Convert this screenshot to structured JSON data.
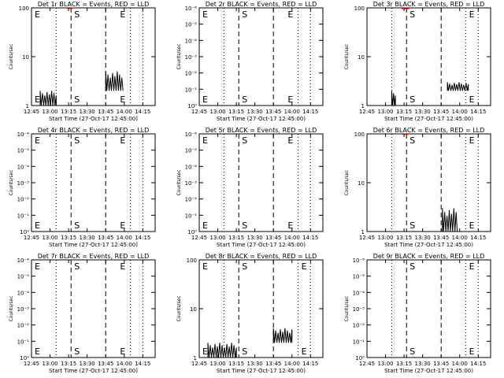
{
  "chart_data": [
    {
      "type": "line",
      "title": "Det 1r BLACK = Events, RED = LLD",
      "xlabel": "Start Time (27-Oct-17 12:45:00)",
      "ylabel": "Counts/sec",
      "x_ticks": [
        "12:45",
        "13:00",
        "13:15",
        "13:30",
        "13:45",
        "14:00",
        "14:15"
      ],
      "y_ticks": [
        "1",
        "10",
        "100"
      ],
      "y_scale": "log",
      "ylim": [
        1,
        100
      ],
      "xlim": [
        "12:45",
        "14:25"
      ],
      "markers": [
        {
          "label": "E",
          "time": "12:45"
        },
        {
          "label": "S",
          "time": "13:17"
        },
        {
          "label": "E",
          "time": "13:54"
        }
      ],
      "dashed_lines": [
        "13:17",
        "13:45"
      ],
      "dotted_lines": [
        "13:05",
        "14:05",
        "14:15"
      ],
      "series": [
        {
          "color": "#000000",
          "segments": [
            {
              "x0": "12:52",
              "x1": "13:05",
              "levels": [
                1,
                2
              ]
            },
            {
              "x0": "13:45",
              "x1": "13:59",
              "levels": [
                2,
                5
              ]
            }
          ]
        },
        {
          "color": "#ff0000",
          "segments": [
            {
              "x0": "13:14",
              "x1": "13:18",
              "levels": [
                95,
                100
              ]
            }
          ]
        }
      ]
    },
    {
      "type": "line",
      "title": "Det 2r BLACK = Events, RED = LLD",
      "xlabel": "Start Time (27-Oct-17 12:45:00)",
      "ylabel": "Counts/sec",
      "x_ticks": [
        "12:45",
        "13:00",
        "13:15",
        "13:30",
        "13:45",
        "14:00",
        "14:15"
      ],
      "y_ticks": [
        "10⁰",
        "10⁻¹",
        "10⁻²",
        "10⁻³",
        "10⁻⁴",
        "10⁻⁵",
        "10⁻⁶"
      ],
      "y_scale": "log",
      "ylim": [
        1,
        1e-06
      ],
      "xlim": [
        "12:45",
        "14:25"
      ],
      "markers": [
        {
          "label": "E",
          "time": "12:45"
        },
        {
          "label": "S",
          "time": "13:17"
        },
        {
          "label": "E",
          "time": "13:54"
        }
      ],
      "dashed_lines": [
        "13:17",
        "13:45"
      ],
      "dotted_lines": [
        "13:05",
        "14:05",
        "14:15"
      ],
      "series": []
    },
    {
      "type": "line",
      "title": "Det 3r BLACK = Events, RED = LLD",
      "xlabel": "Start Time (27-Oct-17 12:45:00)",
      "ylabel": "Counts/sec",
      "x_ticks": [
        "12:45",
        "13:00",
        "13:15",
        "13:30",
        "13:45",
        "14:00",
        "14:15"
      ],
      "y_ticks": [
        "1",
        "10",
        "100"
      ],
      "y_scale": "log",
      "ylim": [
        1,
        100
      ],
      "xlim": [
        "12:45",
        "14:25"
      ],
      "markers": [
        {
          "label": "S",
          "time": "13:17"
        },
        {
          "label": "E",
          "time": "14:05"
        }
      ],
      "dashed_lines": [
        "13:17",
        "13:45"
      ],
      "dotted_lines": [
        "13:05",
        "14:05",
        "14:15"
      ],
      "series": [
        {
          "color": "#000000",
          "segments": [
            {
              "x0": "13:05",
              "x1": "13:08",
              "levels": [
                1,
                2
              ]
            },
            {
              "x0": "13:50",
              "x1": "14:07",
              "levels": [
                2,
                3
              ]
            }
          ]
        },
        {
          "color": "#ff0000",
          "segments": [
            {
              "x0": "13:13",
              "x1": "13:19",
              "levels": [
                95,
                100
              ]
            }
          ]
        }
      ]
    },
    {
      "type": "line",
      "title": "Det 4r BLACK = Events, RED = LLD",
      "xlabel": "Start Time (27-Oct-17 12:45:00)",
      "ylabel": "Counts/sec",
      "x_ticks": [
        "12:45",
        "13:00",
        "13:15",
        "13:30",
        "13:45",
        "14:00",
        "14:15"
      ],
      "y_ticks": [
        "10⁰",
        "10⁻¹",
        "10⁻²",
        "10⁻³",
        "10⁻⁴",
        "10⁻⁵",
        "10⁻⁶"
      ],
      "y_scale": "log",
      "ylim": [
        1,
        1e-06
      ],
      "xlim": [
        "12:45",
        "14:25"
      ],
      "markers": [
        {
          "label": "E",
          "time": "12:45"
        },
        {
          "label": "S",
          "time": "13:17"
        },
        {
          "label": "E",
          "time": "13:54"
        }
      ],
      "dashed_lines": [
        "13:17",
        "13:45"
      ],
      "dotted_lines": [
        "13:05",
        "14:05",
        "14:15"
      ],
      "series": []
    },
    {
      "type": "line",
      "title": "Det 5r BLACK = Events, RED = LLD",
      "xlabel": "Start Time (27-Oct-17 12:45:00)",
      "ylabel": "Counts/sec",
      "x_ticks": [
        "12:45",
        "13:00",
        "13:15",
        "13:30",
        "13:45",
        "14:00",
        "14:15"
      ],
      "y_ticks": [
        "10⁰",
        "10⁻¹",
        "10⁻²",
        "10⁻³",
        "10⁻⁴",
        "10⁻⁵",
        "10⁻⁶"
      ],
      "y_scale": "log",
      "ylim": [
        1,
        1e-06
      ],
      "xlim": [
        "12:45",
        "14:25"
      ],
      "markers": [
        {
          "label": "E",
          "time": "12:45"
        },
        {
          "label": "S",
          "time": "13:17"
        },
        {
          "label": "E",
          "time": "13:54"
        }
      ],
      "dashed_lines": [
        "13:17",
        "13:45"
      ],
      "dotted_lines": [
        "13:05",
        "14:05",
        "14:15"
      ],
      "series": []
    },
    {
      "type": "line",
      "title": "Det 6r BLACK = Events, RED = LLD",
      "xlabel": "Start Time (27-Oct-17 12:45:00)",
      "ylabel": "Counts/sec",
      "x_ticks": [
        "12:45",
        "13:00",
        "13:15",
        "13:30",
        "13:45",
        "14:00",
        "14:15"
      ],
      "y_ticks": [
        "1",
        "10",
        "100"
      ],
      "y_scale": "log",
      "ylim": [
        1,
        100
      ],
      "xlim": [
        "12:45",
        "14:25"
      ],
      "markers": [
        {
          "label": "S",
          "time": "13:17"
        },
        {
          "label": "E",
          "time": "14:05"
        }
      ],
      "dashed_lines": [
        "13:17",
        "13:45"
      ],
      "dotted_lines": [
        "13:05",
        "14:05",
        "14:15"
      ],
      "series": [
        {
          "color": "#000000",
          "segments": [
            {
              "x0": "13:46",
              "x1": "13:58",
              "levels": [
                1,
                3
              ]
            }
          ]
        },
        {
          "color": "#ff0000",
          "segments": [
            {
              "x0": "13:14",
              "x1": "13:18",
              "levels": [
                95,
                100
              ]
            }
          ]
        }
      ]
    },
    {
      "type": "line",
      "title": "Det 7r BLACK = Events, RED = LLD",
      "xlabel": "Start Time (27-Oct-17 12:45:00)",
      "ylabel": "Counts/sec",
      "x_ticks": [
        "12:45",
        "13:00",
        "13:15",
        "13:30",
        "13:45",
        "14:00",
        "14:15"
      ],
      "y_ticks": [
        "10⁰",
        "10⁻¹",
        "10⁻²",
        "10⁻³",
        "10⁻⁴",
        "10⁻⁵",
        "10⁻⁶"
      ],
      "y_scale": "log",
      "ylim": [
        1,
        1e-06
      ],
      "xlim": [
        "12:45",
        "14:25"
      ],
      "markers": [
        {
          "label": "E",
          "time": "12:45"
        },
        {
          "label": "S",
          "time": "13:17"
        },
        {
          "label": "E",
          "time": "13:54"
        }
      ],
      "dashed_lines": [
        "13:17",
        "13:45"
      ],
      "dotted_lines": [
        "13:05",
        "14:05",
        "14:15"
      ],
      "series": []
    },
    {
      "type": "line",
      "title": "Det 8r BLACK = Events, RED = LLD",
      "xlabel": "Start Time (27-Oct-17 12:45:00)",
      "ylabel": "Counts/sec",
      "x_ticks": [
        "12:45",
        "13:00",
        "13:15",
        "13:30",
        "13:45",
        "14:00",
        "14:15"
      ],
      "y_ticks": [
        "1",
        "10",
        "100"
      ],
      "y_scale": "log",
      "ylim": [
        1,
        100
      ],
      "xlim": [
        "12:45",
        "14:25"
      ],
      "markers": [
        {
          "label": "E",
          "time": "12:45"
        },
        {
          "label": "S",
          "time": "13:17"
        },
        {
          "label": "E",
          "time": "14:05"
        }
      ],
      "dashed_lines": [
        "13:17",
        "13:45"
      ],
      "dotted_lines": [
        "13:05",
        "14:05",
        "14:15"
      ],
      "series": [
        {
          "color": "#000000",
          "segments": [
            {
              "x0": "12:52",
              "x1": "13:15",
              "levels": [
                1,
                2
              ]
            },
            {
              "x0": "13:45",
              "x1": "14:00",
              "levels": [
                2,
                4
              ]
            }
          ]
        }
      ]
    },
    {
      "type": "line",
      "title": "Det 9r BLACK = Events, RED = LLD",
      "xlabel": "Start Time (27-Oct-17 12:45:00)",
      "ylabel": "Counts/sec",
      "x_ticks": [
        "12:45",
        "13:00",
        "13:15",
        "13:30",
        "13:45",
        "14:00",
        "14:15"
      ],
      "y_ticks": [
        "10⁰",
        "10⁻¹",
        "10⁻²",
        "10⁻³",
        "10⁻⁴",
        "10⁻⁵",
        "10⁻⁶"
      ],
      "y_scale": "log",
      "ylim": [
        1,
        1e-06
      ],
      "xlim": [
        "12:45",
        "14:25"
      ],
      "markers": [
        {
          "label": "S",
          "time": "13:17"
        },
        {
          "label": "E",
          "time": "14:05"
        }
      ],
      "dashed_lines": [
        "13:17",
        "13:45"
      ],
      "dotted_lines": [
        "13:05",
        "14:05",
        "14:15"
      ],
      "series": []
    }
  ]
}
